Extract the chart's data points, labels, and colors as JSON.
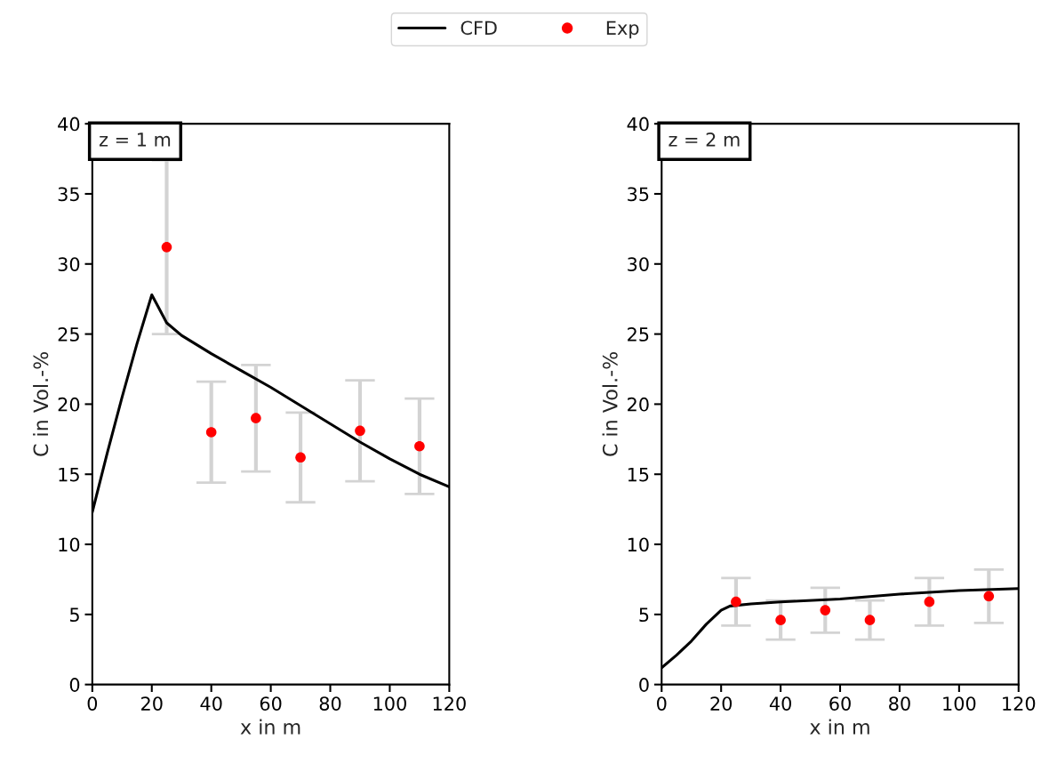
{
  "chart_data": [
    {
      "type": "line",
      "annotations": [
        "z = 1 m"
      ],
      "xlabel": "x in m",
      "ylabel": "C in Vol.-%",
      "xlim": [
        0,
        120
      ],
      "ylim": [
        0,
        40
      ],
      "xticks": [
        0,
        20,
        40,
        60,
        80,
        100,
        120
      ],
      "yticks": [
        0,
        5,
        10,
        15,
        20,
        25,
        30,
        35,
        40
      ],
      "legend": "top",
      "grid": false,
      "series": [
        {
          "name": "CFD",
          "color": "#000000",
          "line_style": "solid",
          "x": [
            0,
            5,
            10,
            15,
            20,
            22,
            25,
            30,
            40,
            50,
            60,
            70,
            80,
            90,
            100,
            110,
            120
          ],
          "values": [
            12.3,
            16.5,
            20.5,
            24.3,
            27.8,
            27.0,
            25.8,
            24.9,
            23.6,
            22.4,
            21.2,
            19.9,
            18.6,
            17.3,
            16.1,
            15.0,
            14.1
          ]
        },
        {
          "name": "Exp",
          "type": "scatter",
          "marker": "circle",
          "color": "#ff0000",
          "x": [
            25,
            40,
            55,
            70,
            90,
            110
          ],
          "values": [
            31.2,
            18.0,
            19.0,
            16.2,
            18.1,
            17.0
          ],
          "errors": [
            6.2,
            3.6,
            3.8,
            3.2,
            3.6,
            3.4
          ]
        }
      ]
    },
    {
      "type": "line",
      "annotations": [
        "z = 2 m"
      ],
      "xlabel": "x in m",
      "ylabel": "C in Vol.-%",
      "xlim": [
        0,
        120
      ],
      "ylim": [
        0,
        40
      ],
      "xticks": [
        0,
        20,
        40,
        60,
        80,
        100,
        120
      ],
      "yticks": [
        0,
        5,
        10,
        15,
        20,
        25,
        30,
        35,
        40
      ],
      "grid": false,
      "series": [
        {
          "color": "#000000",
          "line_style": "solid",
          "x": [
            0,
            5,
            10,
            15,
            20,
            23,
            30,
            40,
            60,
            80,
            100,
            120
          ],
          "values": [
            1.2,
            2.1,
            3.1,
            4.3,
            5.3,
            5.6,
            5.75,
            5.9,
            6.1,
            6.45,
            6.7,
            6.85
          ]
        },
        {
          "type": "scatter",
          "marker": "circle",
          "color": "#ff0000",
          "x": [
            25,
            40,
            55,
            70,
            90,
            110
          ],
          "values": [
            5.9,
            4.6,
            5.3,
            4.6,
            5.9,
            6.3
          ],
          "errors": [
            1.7,
            1.4,
            1.6,
            1.4,
            1.7,
            1.9
          ]
        }
      ]
    }
  ]
}
